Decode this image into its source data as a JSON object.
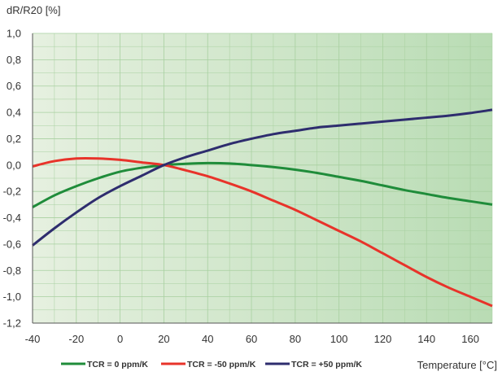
{
  "chart_data": {
    "type": "line",
    "ylabel": "dR/R20 [%]",
    "xlabel": "Temperature [°C]",
    "xlim": [
      -40,
      170
    ],
    "ylim": [
      -1.2,
      1.0
    ],
    "x_ticks": [
      -40,
      -20,
      0,
      20,
      40,
      60,
      80,
      100,
      120,
      140,
      160
    ],
    "x_tick_labels": [
      "-40",
      "-20",
      "0",
      "20",
      "40",
      "60",
      "80",
      "100",
      "120",
      "140",
      "160"
    ],
    "y_ticks": [
      1.0,
      0.8,
      0.6,
      0.4,
      0.2,
      0.0,
      -0.2,
      -0.4,
      -0.6,
      -0.8,
      -1.0,
      -1.2
    ],
    "y_tick_labels": [
      "1,0",
      "0,8",
      "0,6",
      "0,4",
      "0,2",
      "0,0",
      "-0,2",
      "-0,4",
      "-0,6",
      "-0,8",
      "-1,0",
      "-1,2"
    ],
    "grid": true,
    "legend_position": "bottom",
    "background": "green gradient (light left to darker right)",
    "colors": {
      "bg_left": "#e6f0e0",
      "bg_right": "#b9dcb4",
      "grid": "#a8d0a0"
    },
    "series": [
      {
        "name": "TCR = 0 ppm/K",
        "color": "#1f8c3a",
        "x": [
          -40,
          -30,
          -20,
          -10,
          0,
          10,
          20,
          30,
          40,
          50,
          60,
          70,
          80,
          90,
          100,
          110,
          120,
          130,
          140,
          150,
          160,
          170
        ],
        "y": [
          -0.32,
          -0.23,
          -0.16,
          -0.1,
          -0.05,
          -0.02,
          0.0,
          0.01,
          0.015,
          0.012,
          0.0,
          -0.015,
          -0.035,
          -0.06,
          -0.09,
          -0.12,
          -0.155,
          -0.19,
          -0.22,
          -0.25,
          -0.275,
          -0.3
        ]
      },
      {
        "name": "TCR = -50 ppm/K",
        "color": "#e8332a",
        "x": [
          -40,
          -30,
          -20,
          -10,
          0,
          10,
          20,
          30,
          40,
          50,
          60,
          70,
          80,
          90,
          100,
          110,
          120,
          130,
          140,
          150,
          160,
          170
        ],
        "y": [
          -0.01,
          0.03,
          0.05,
          0.05,
          0.04,
          0.02,
          0.0,
          -0.04,
          -0.085,
          -0.14,
          -0.2,
          -0.27,
          -0.34,
          -0.42,
          -0.5,
          -0.58,
          -0.67,
          -0.76,
          -0.85,
          -0.93,
          -1.0,
          -1.07
        ]
      },
      {
        "name": "TCR = +50 ppm/K",
        "color": "#2e2d6e",
        "x": [
          -40,
          -30,
          -20,
          -10,
          0,
          10,
          20,
          30,
          40,
          50,
          60,
          70,
          80,
          90,
          100,
          110,
          120,
          130,
          140,
          150,
          160,
          170
        ],
        "y": [
          -0.61,
          -0.48,
          -0.36,
          -0.25,
          -0.16,
          -0.08,
          0.0,
          0.06,
          0.11,
          0.16,
          0.2,
          0.235,
          0.26,
          0.285,
          0.3,
          0.315,
          0.33,
          0.345,
          0.36,
          0.375,
          0.395,
          0.42
        ]
      }
    ]
  }
}
